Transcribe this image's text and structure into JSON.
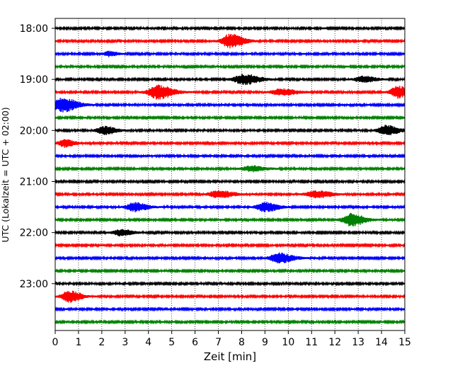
{
  "chart_data": {
    "type": "line",
    "title": "",
    "xlabel": "Zeit  [min]",
    "ylabel": "UTC (Lokalzeit = UTC + 02:00)",
    "xlim": [
      0,
      15
    ],
    "x_ticks": [
      "0",
      "1",
      "2",
      "3",
      "4",
      "5",
      "6",
      "7",
      "8",
      "9",
      "10",
      "11",
      "12",
      "13",
      "14",
      "15"
    ],
    "y_ticks": [
      "18:00",
      "19:00",
      "20:00",
      "21:00",
      "22:00",
      "23:00"
    ],
    "grid": "vertical-dotted",
    "trace_interval_min": 15,
    "traces": [
      {
        "start": "18:00",
        "color": "#000000",
        "bursts": []
      },
      {
        "start": "18:15",
        "color": "#ff0000",
        "bursts": [
          {
            "t": 7.5,
            "amp": 1.0,
            "dur": 1.4
          }
        ]
      },
      {
        "start": "18:30",
        "color": "#0000ff",
        "bursts": [
          {
            "t": 2.3,
            "amp": 0.35,
            "dur": 0.8
          }
        ]
      },
      {
        "start": "18:45",
        "color": "#008000",
        "bursts": []
      },
      {
        "start": "19:00",
        "color": "#000000",
        "bursts": [
          {
            "t": 8.1,
            "amp": 0.75,
            "dur": 1.6
          },
          {
            "t": 13.2,
            "amp": 0.45,
            "dur": 1.3
          }
        ]
      },
      {
        "start": "19:15",
        "color": "#ff0000",
        "bursts": [
          {
            "t": 4.4,
            "amp": 1.0,
            "dur": 1.6
          },
          {
            "t": 9.7,
            "amp": 0.45,
            "dur": 1.6
          },
          {
            "t": 14.7,
            "amp": 0.85,
            "dur": 1.2
          }
        ]
      },
      {
        "start": "19:30",
        "color": "#0000ff",
        "bursts": [
          {
            "t": 0.3,
            "amp": 1.0,
            "dur": 1.6
          }
        ]
      },
      {
        "start": "19:45",
        "color": "#008000",
        "bursts": []
      },
      {
        "start": "20:00",
        "color": "#000000",
        "bursts": [
          {
            "t": 2.1,
            "amp": 0.6,
            "dur": 1.2
          },
          {
            "t": 14.2,
            "amp": 0.7,
            "dur": 1.3
          }
        ]
      },
      {
        "start": "20:15",
        "color": "#ff0000",
        "bursts": [
          {
            "t": 0.4,
            "amp": 0.55,
            "dur": 1.0
          }
        ]
      },
      {
        "start": "20:30",
        "color": "#0000ff",
        "bursts": []
      },
      {
        "start": "20:45",
        "color": "#008000",
        "bursts": [
          {
            "t": 8.4,
            "amp": 0.4,
            "dur": 1.4
          }
        ]
      },
      {
        "start": "21:00",
        "color": "#000000",
        "bursts": []
      },
      {
        "start": "21:15",
        "color": "#ff0000",
        "bursts": [
          {
            "t": 7.0,
            "amp": 0.5,
            "dur": 1.6
          },
          {
            "t": 11.2,
            "amp": 0.5,
            "dur": 1.6
          }
        ]
      },
      {
        "start": "21:30",
        "color": "#0000ff",
        "bursts": [
          {
            "t": 3.4,
            "amp": 0.65,
            "dur": 1.3
          },
          {
            "t": 9.0,
            "amp": 0.7,
            "dur": 1.3
          }
        ]
      },
      {
        "start": "21:45",
        "color": "#008000",
        "bursts": [
          {
            "t": 12.7,
            "amp": 0.9,
            "dur": 1.4
          }
        ]
      },
      {
        "start": "22:00",
        "color": "#000000",
        "bursts": [
          {
            "t": 2.8,
            "amp": 0.45,
            "dur": 1.2
          }
        ]
      },
      {
        "start": "22:15",
        "color": "#ff0000",
        "bursts": []
      },
      {
        "start": "22:30",
        "color": "#0000ff",
        "bursts": [
          {
            "t": 9.6,
            "amp": 0.7,
            "dur": 1.5
          }
        ]
      },
      {
        "start": "22:45",
        "color": "#008000",
        "bursts": []
      },
      {
        "start": "23:00",
        "color": "#000000",
        "bursts": []
      },
      {
        "start": "23:15",
        "color": "#ff0000",
        "bursts": [
          {
            "t": 0.6,
            "amp": 0.85,
            "dur": 1.2
          }
        ]
      },
      {
        "start": "23:30",
        "color": "#0000ff",
        "bursts": []
      },
      {
        "start": "23:45",
        "color": "#008000",
        "bursts": []
      }
    ]
  }
}
